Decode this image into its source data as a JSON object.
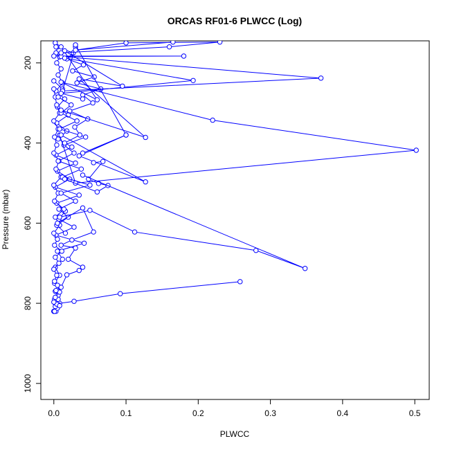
{
  "chart_data": {
    "type": "line",
    "title": "ORCAS RF01-6 PLWCC (Log)",
    "xlabel": "PLWCC",
    "ylabel": "Pressure (mbar)",
    "xlim": [
      -0.018,
      0.52
    ],
    "ylim": [
      1040,
      145
    ],
    "y_reversed": true,
    "x_ticks": [
      {
        "value": 0.0,
        "label": "0.0"
      },
      {
        "value": 0.1,
        "label": "0.1"
      },
      {
        "value": 0.2,
        "label": "0.2"
      },
      {
        "value": 0.3,
        "label": "0.3"
      },
      {
        "value": 0.4,
        "label": "0.4"
      },
      {
        "value": 0.5,
        "label": "0.5"
      }
    ],
    "y_ticks": [
      {
        "value": 200,
        "label": "200"
      },
      {
        "value": 400,
        "label": "400"
      },
      {
        "value": 600,
        "label": "600"
      },
      {
        "value": 800,
        "label": "800"
      },
      {
        "value": 1000,
        "label": "1000"
      }
    ],
    "marker": "open-circle",
    "series_color": "#0000ff",
    "series": [
      {
        "x": [
          0.002,
          0.005,
          0.003,
          0.008,
          0.004,
          0.01,
          0.006,
          0.012,
          0.003,
          0.015,
          0.005,
          0.02,
          0.004,
          0.018,
          0.006,
          0.025,
          0.003,
          0.03,
          0.005,
          0.022,
          0.002,
          0.035,
          0.004,
          0.016,
          0.007,
          0.028,
          0.003,
          0.042,
          0.005,
          0.012,
          0.002,
          0.008,
          0.001
        ],
        "y": [
          150,
          160,
          175,
          185,
          200,
          215,
          230,
          250,
          270,
          290,
          310,
          330,
          350,
          370,
          390,
          410,
          430,
          450,
          470,
          490,
          510,
          530,
          550,
          570,
          590,
          610,
          630,
          650,
          670,
          690,
          710,
          730,
          750
        ]
      },
      {
        "x": [
          0.0,
          0.003,
          0.001,
          0.006,
          0.002,
          0.009,
          0.001,
          0.004,
          0.0,
          0.007,
          0.002,
          0.011,
          0.001,
          0.005,
          0.0,
          0.008,
          0.002,
          0.014,
          0.001,
          0.006,
          0.0,
          0.01,
          0.003,
          0.007,
          0.0,
          0.004,
          0.001,
          0.006,
          0.0,
          0.008,
          0.004,
          0.002,
          0.0
        ],
        "y": [
          820,
          805,
          790,
          780,
          770,
          760,
          745,
          730,
          715,
          700,
          685,
          670,
          655,
          640,
          625,
          605,
          585,
          565,
          545,
          525,
          505,
          485,
          465,
          445,
          425,
          405,
          385,
          365,
          345,
          325,
          305,
          285,
          265
        ]
      },
      {
        "x": [
          0.0,
          0.012,
          0.006,
          0.024,
          0.01,
          0.032,
          0.008,
          0.044,
          0.014,
          0.028,
          0.006,
          0.038,
          0.012,
          0.05,
          0.01,
          0.03,
          0.007,
          0.02,
          0.004,
          0.016
        ],
        "y": [
          245,
          265,
          285,
          305,
          325,
          345,
          365,
          385,
          405,
          425,
          445,
          465,
          485,
          505,
          525,
          545,
          565,
          585,
          605,
          625
        ]
      },
      {
        "x": [
          0.003,
          0.027,
          0.018,
          0.041,
          0.026,
          0.056,
          0.032,
          0.065,
          0.04,
          0.054,
          0.022,
          0.047,
          0.029,
          0.036,
          0.015
        ],
        "y": [
          160,
          175,
          190,
          205,
          220,
          235,
          250,
          265,
          280,
          300,
          320,
          340,
          360,
          380,
          400
        ]
      },
      {
        "x": [
          0.0,
          0.18,
          0.01,
          0.37,
          0.012,
          0.03
        ],
        "y": [
          183,
          183,
          184,
          238,
          270,
          160
        ]
      },
      {
        "x": [
          0.015,
          0.193,
          0.01,
          0.04
        ],
        "y": [
          188,
          244,
          276,
          290
        ]
      },
      {
        "x": [
          0.01,
          0.06,
          0.01,
          0.22,
          0.502,
          0.03,
          0.008
        ],
        "y": [
          160,
          292,
          248,
          343,
          418,
          500,
          380
        ]
      },
      {
        "x": [
          0.015,
          0.095,
          0.035,
          0.127,
          0.01
        ],
        "y": [
          170,
          258,
          240,
          386,
          318
        ]
      },
      {
        "x": [
          0.03,
          0.1,
          0.04,
          0.1,
          0.035,
          0.127,
          0.01
        ],
        "y": [
          155,
          380,
          425,
          380,
          432,
          497,
          380
        ]
      },
      {
        "x": [
          0.055,
          0.068,
          0.048,
          0.062,
          0.075,
          0.06,
          0.015
        ],
        "y": [
          449,
          446,
          490,
          501,
          506,
          522,
          490
        ]
      },
      {
        "x": [
          0.008,
          0.05,
          0.112,
          0.28,
          0.348,
          0.04
        ],
        "y": [
          585,
          568,
          622,
          668,
          713,
          480
        ]
      },
      {
        "x": [
          0.005,
          0.04,
          0.055,
          0.025,
          0.01,
          0.03,
          0.02,
          0.04,
          0.035,
          0.018,
          0.01
        ],
        "y": [
          600,
          562,
          622,
          642,
          655,
          662,
          690,
          710,
          718,
          729,
          760
        ]
      },
      {
        "x": [
          0.008,
          0.028,
          0.092,
          0.258
        ],
        "y": [
          800,
          795,
          776,
          746
        ]
      },
      {
        "x": [
          0.0,
          0.003,
          0.001,
          0.005,
          0.002,
          0.007,
          0.004,
          0.008,
          0.0,
          0.006,
          0.002,
          0.008,
          0.003,
          0.005
        ],
        "y": [
          820,
          820,
          820,
          812,
          808,
          804,
          802,
          806,
          797,
          790,
          785,
          772,
          768,
          755
        ]
      },
      {
        "x": [
          0.01,
          0.16,
          0.23,
          0.1,
          0.03,
          0.165
        ],
        "y": [
          175,
          160,
          148,
          150,
          168,
          148
        ]
      }
    ]
  }
}
